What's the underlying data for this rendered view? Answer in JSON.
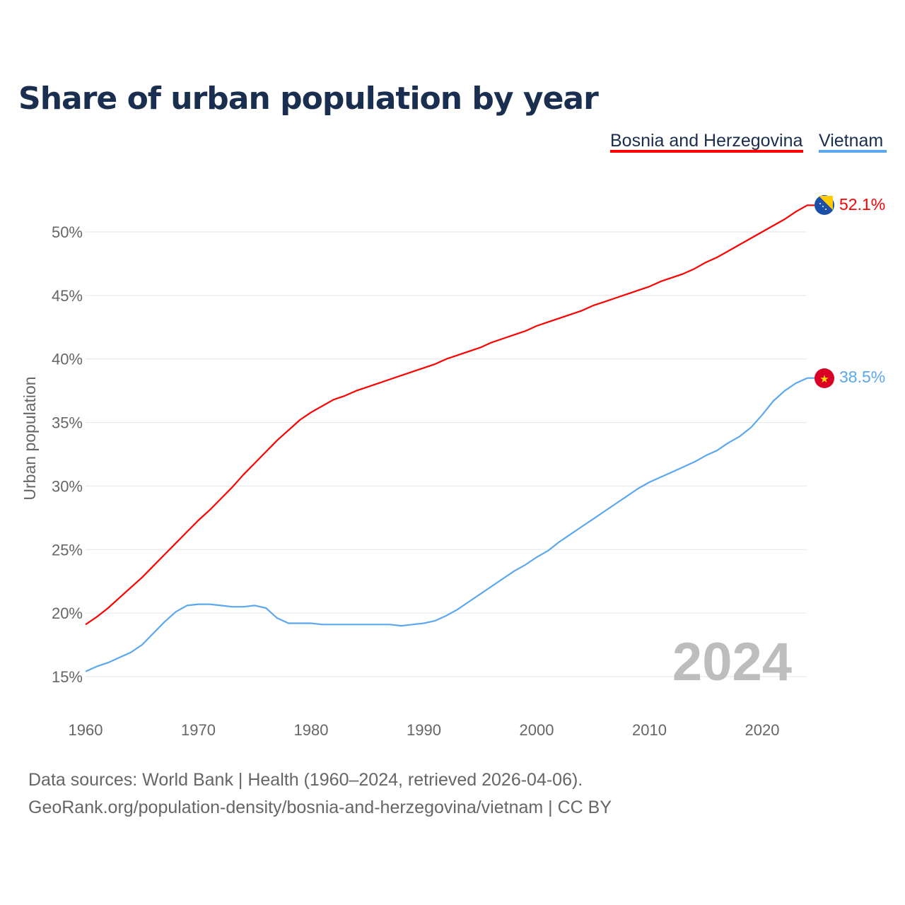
{
  "chart_data": {
    "type": "line",
    "title": "Share of urban population by year",
    "xlabel": "",
    "ylabel": "Urban population",
    "xlim": [
      1960,
      2024
    ],
    "ylim": [
      15,
      52.1
    ],
    "yticks": [
      "15%",
      "20%",
      "25%",
      "30%",
      "35%",
      "40%",
      "45%",
      "50%"
    ],
    "ytick_values": [
      15,
      20,
      25,
      30,
      35,
      40,
      45,
      50
    ],
    "xticks": [
      "1960",
      "1970",
      "1980",
      "1990",
      "2000",
      "2010",
      "2020"
    ],
    "xtick_values": [
      1960,
      1970,
      1980,
      1990,
      2000,
      2010,
      2020
    ],
    "grid": true,
    "legend_position": "top-right",
    "year_watermark": "2024",
    "x_start": 1960,
    "series": [
      {
        "name": "Bosnia and Herzegovina",
        "color": "#ff0000",
        "end_label": "52.1%",
        "values": [
          19.1,
          19.7,
          20.4,
          21.2,
          22.0,
          22.8,
          23.7,
          24.6,
          25.5,
          26.4,
          27.3,
          28.1,
          29.0,
          29.9,
          30.9,
          31.8,
          32.7,
          33.6,
          34.4,
          35.2,
          35.8,
          36.3,
          36.8,
          37.1,
          37.5,
          37.8,
          38.1,
          38.4,
          38.7,
          39.0,
          39.3,
          39.6,
          40.0,
          40.3,
          40.6,
          40.9,
          41.3,
          41.6,
          41.9,
          42.2,
          42.6,
          42.9,
          43.2,
          43.5,
          43.8,
          44.2,
          44.5,
          44.8,
          45.1,
          45.4,
          45.7,
          46.1,
          46.4,
          46.7,
          47.1,
          47.6,
          48.0,
          48.5,
          49.0,
          49.5,
          50.0,
          50.5,
          51.0,
          51.6,
          52.1
        ]
      },
      {
        "name": "Vietnam",
        "color": "#5ca8ef",
        "end_label": "38.5%",
        "values": [
          15.4,
          15.8,
          16.1,
          16.5,
          16.9,
          17.5,
          18.4,
          19.3,
          20.1,
          20.6,
          20.7,
          20.7,
          20.6,
          20.5,
          20.5,
          20.6,
          20.4,
          19.6,
          19.2,
          19.2,
          19.2,
          19.1,
          19.1,
          19.1,
          19.1,
          19.1,
          19.1,
          19.1,
          19.0,
          19.1,
          19.2,
          19.4,
          19.8,
          20.3,
          20.9,
          21.5,
          22.1,
          22.7,
          23.3,
          23.8,
          24.4,
          24.9,
          25.6,
          26.2,
          26.8,
          27.4,
          28.0,
          28.6,
          29.2,
          29.8,
          30.3,
          30.7,
          31.1,
          31.5,
          31.9,
          32.4,
          32.8,
          33.4,
          33.9,
          34.6,
          35.6,
          36.7,
          37.5,
          38.1,
          38.5
        ]
      }
    ]
  },
  "footer": {
    "line1": "Data sources: World Bank | Health (1960–2024, retrieved 2026-04-06).",
    "line2": "GeoRank.org/population-density/bosnia-and-herzegovina/vietnam | CC BY"
  }
}
